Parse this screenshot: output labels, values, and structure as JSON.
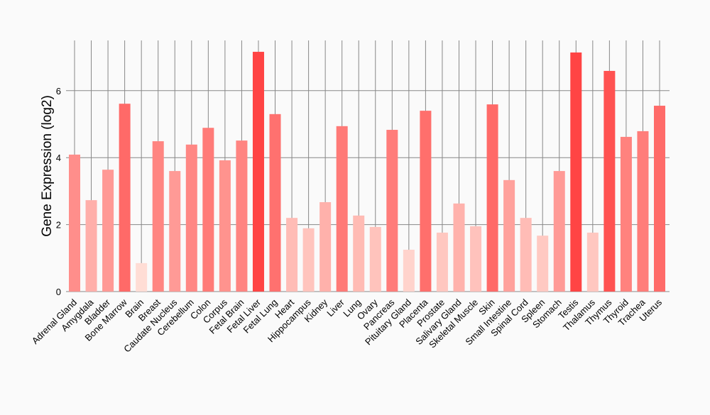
{
  "chart_data": {
    "type": "bar",
    "title": "",
    "xlabel": "",
    "ylabel": "Gene Expression (log2)",
    "ylim": [
      0,
      7.5
    ],
    "yticks": [
      0,
      2,
      4,
      6
    ],
    "grid": true,
    "categories": [
      "Adrenal Gland",
      "Amygdala",
      "Bladder",
      "Bone Marrow",
      "Brain",
      "Breast",
      "Caudate Nucleus",
      "Cerebellum",
      "Colon",
      "Corpus",
      "Fetal Brain",
      "Fetal Liver",
      "Fetal Lung",
      "Heart",
      "Hippocampus",
      "Kidney",
      "Liver",
      "Lung",
      "Ovary",
      "Pancreas",
      "Pituitary Gland",
      "Placenta",
      "Prostate",
      "Salivary Gland",
      "Skeletal Muscle",
      "Skin",
      "Small Intestine",
      "Spinal Cord",
      "Spleen",
      "Stomach",
      "Testis",
      "Thalamus",
      "Thymus",
      "Thyroid",
      "Trachea",
      "Uterus"
    ],
    "values": [
      4.09,
      2.73,
      3.64,
      5.61,
      0.85,
      4.49,
      3.6,
      4.39,
      4.89,
      3.92,
      4.51,
      7.16,
      5.3,
      2.2,
      1.89,
      2.67,
      4.94,
      2.27,
      1.93,
      4.83,
      1.25,
      5.4,
      1.76,
      2.63,
      1.95,
      5.59,
      3.33,
      2.2,
      1.67,
      3.6,
      7.14,
      1.76,
      6.59,
      4.62,
      4.79,
      5.55
    ],
    "colors": {
      "low": "#ffddd5",
      "high": "#ff4444",
      "grid": "#888888",
      "text": "#000000"
    }
  }
}
